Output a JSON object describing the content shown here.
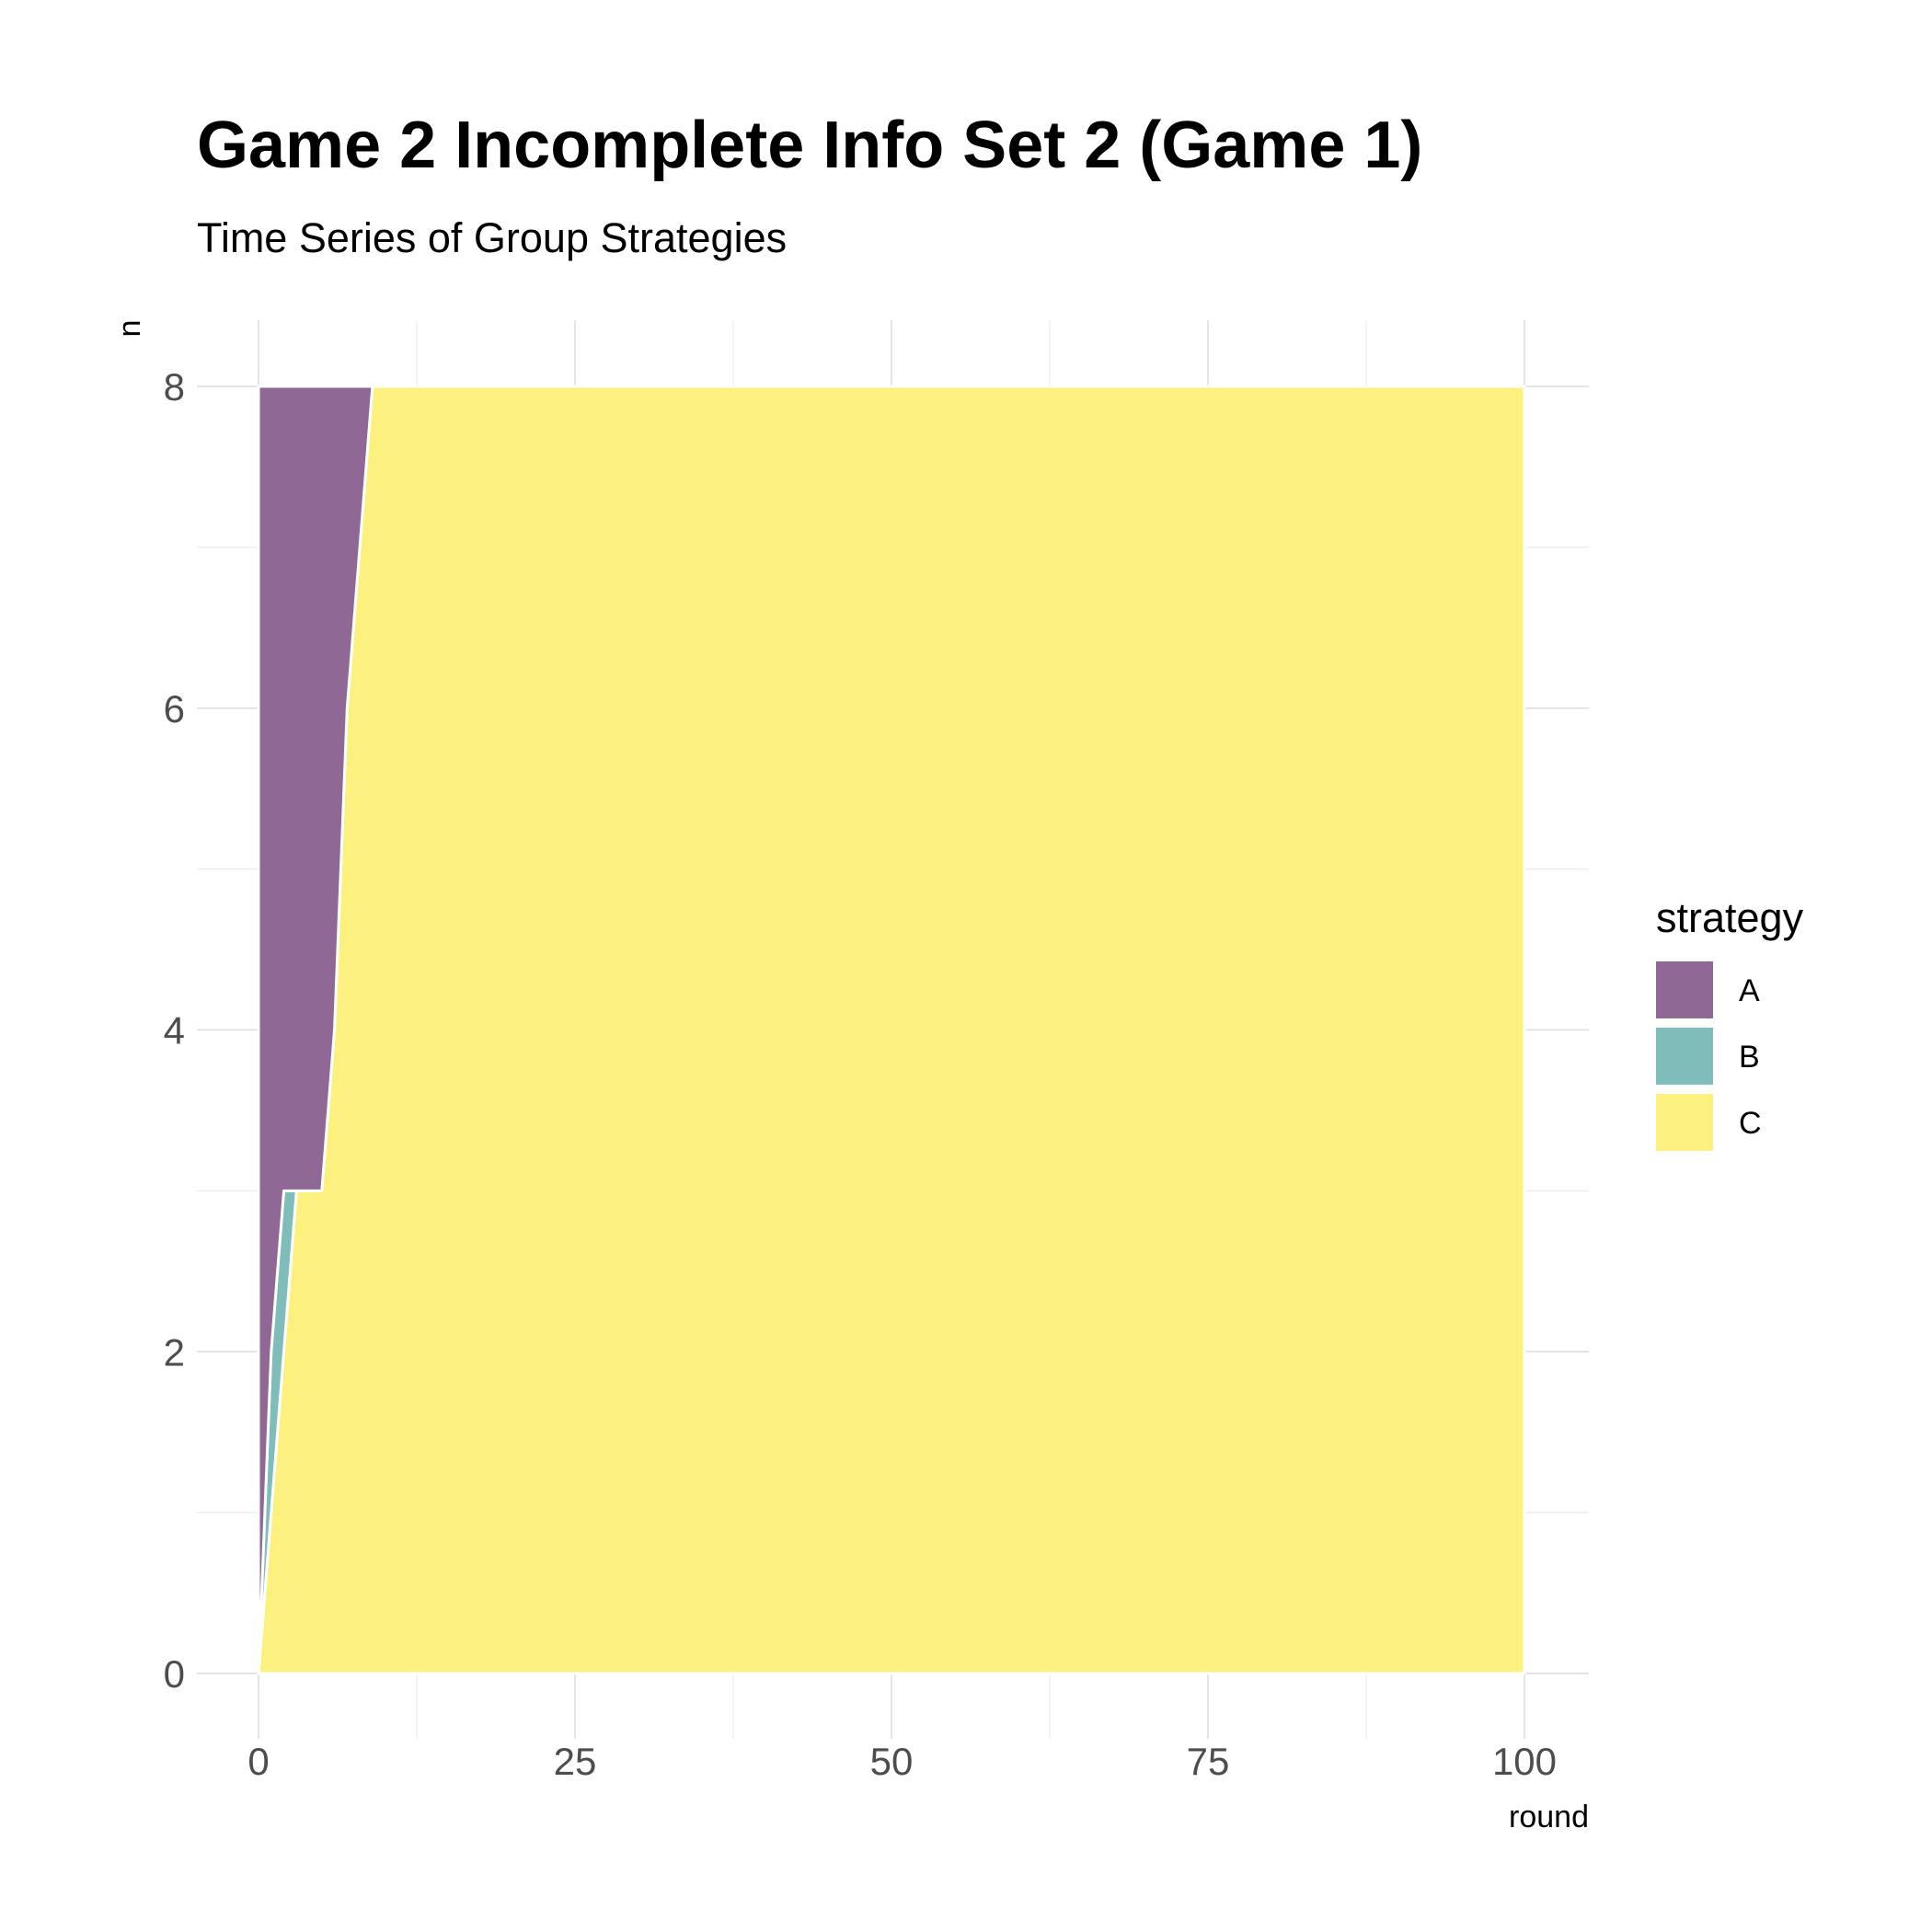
{
  "chart_data": {
    "type": "area",
    "stacked": true,
    "title": "Game 2 Incomplete Info Set 2 (Game 1)",
    "subtitle": "Time Series of Group Strategies",
    "xlabel": "round",
    "ylabel": "n",
    "xlim": [
      0,
      100
    ],
    "ylim": [
      0,
      8
    ],
    "x_ticks": [
      0,
      25,
      50,
      75,
      100
    ],
    "y_ticks": [
      0,
      2,
      4,
      6,
      8
    ],
    "grid": true,
    "legend": {
      "title": "strategy",
      "position": "right"
    },
    "x": [
      0,
      1,
      2,
      3,
      5,
      6,
      7,
      8,
      9,
      10,
      100
    ],
    "series": [
      {
        "name": "A",
        "color": "#8F6896",
        "values": [
          8,
          6,
          5,
          5,
          5,
          4,
          2,
          1,
          0,
          0,
          0
        ]
      },
      {
        "name": "B",
        "color": "#7EBDBA",
        "values": [
          0,
          1,
          1,
          0,
          0,
          0,
          0,
          0,
          0,
          0,
          0
        ]
      },
      {
        "name": "C",
        "color": "#FCF17E",
        "values": [
          0,
          1,
          2,
          3,
          3,
          4,
          6,
          7,
          8,
          8,
          8
        ]
      }
    ]
  }
}
